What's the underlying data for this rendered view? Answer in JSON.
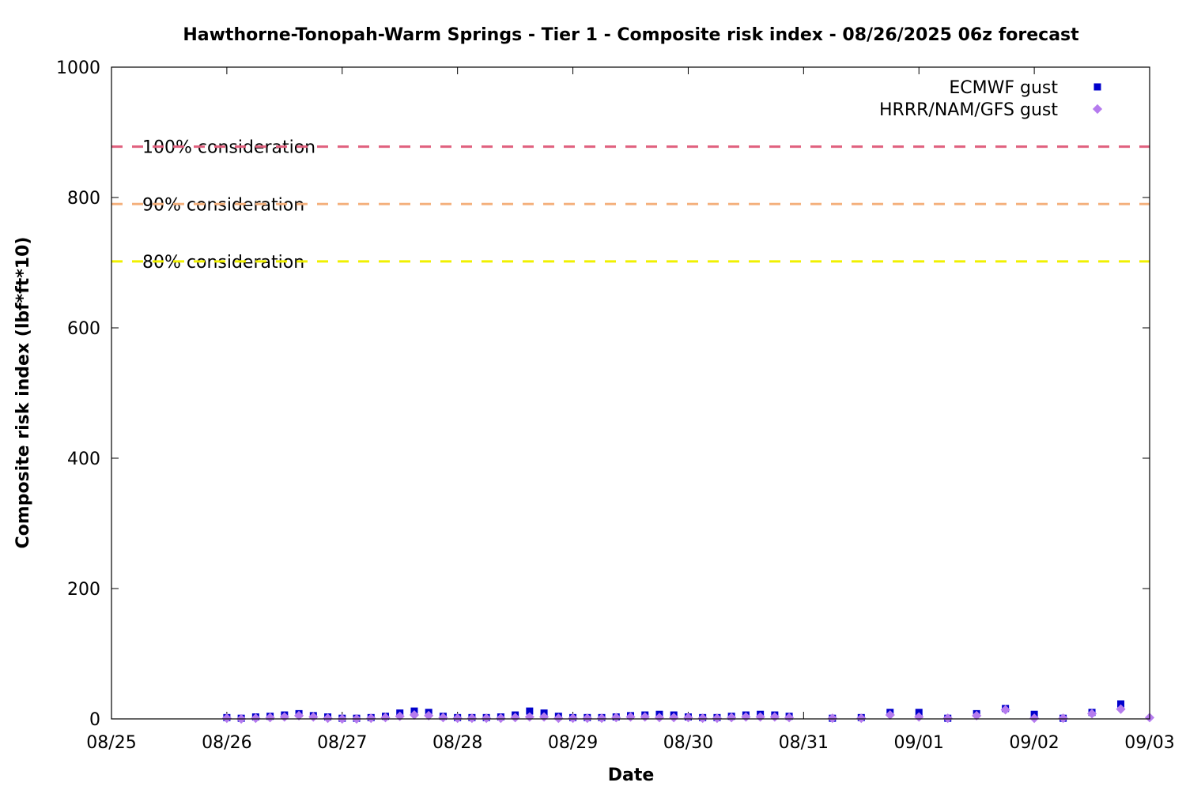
{
  "chart_data": {
    "type": "scatter",
    "title": "Hawthorne-Tonopah-Warm Springs - Tier 1 - Composite risk index - 08/26/2025 06z forecast",
    "xlabel": "Date",
    "ylabel": "Composite risk index (lbf*ft*10)",
    "xlim": [
      "2025-08-25 00:00",
      "2025-09-03 00:00"
    ],
    "ylim": [
      0,
      1000
    ],
    "x_ticks": [
      "08/25",
      "08/26",
      "08/27",
      "08/28",
      "08/29",
      "08/30",
      "08/31",
      "09/01",
      "09/02",
      "09/03"
    ],
    "y_ticks": [
      0,
      200,
      400,
      600,
      800,
      1000
    ],
    "legend_position": "top-right",
    "grid": false,
    "reference_lines": [
      {
        "label": "100% consideration",
        "y": 878,
        "color": "#e0607e"
      },
      {
        "label": "90% consideration",
        "y": 790,
        "color": "#f4b07c"
      },
      {
        "label": "80% consideration",
        "y": 702,
        "color": "#f0f000"
      }
    ],
    "series": [
      {
        "name": "ECMWF gust",
        "color": "#0000cc",
        "marker": "square",
        "points": [
          [
            "2025-08-26 00:00",
            2
          ],
          [
            "2025-08-26 03:00",
            1
          ],
          [
            "2025-08-26 06:00",
            3
          ],
          [
            "2025-08-26 09:00",
            4
          ],
          [
            "2025-08-26 12:00",
            6
          ],
          [
            "2025-08-26 15:00",
            8
          ],
          [
            "2025-08-26 18:00",
            5
          ],
          [
            "2025-08-26 21:00",
            3
          ],
          [
            "2025-08-27 00:00",
            1
          ],
          [
            "2025-08-27 03:00",
            1
          ],
          [
            "2025-08-27 06:00",
            2
          ],
          [
            "2025-08-27 09:00",
            4
          ],
          [
            "2025-08-27 12:00",
            9
          ],
          [
            "2025-08-27 15:00",
            12
          ],
          [
            "2025-08-27 18:00",
            10
          ],
          [
            "2025-08-27 21:00",
            4
          ],
          [
            "2025-08-28 00:00",
            2
          ],
          [
            "2025-08-28 03:00",
            2
          ],
          [
            "2025-08-28 06:00",
            2
          ],
          [
            "2025-08-28 09:00",
            3
          ],
          [
            "2025-08-28 12:00",
            6
          ],
          [
            "2025-08-28 15:00",
            12
          ],
          [
            "2025-08-28 18:00",
            9
          ],
          [
            "2025-08-28 21:00",
            4
          ],
          [
            "2025-08-29 00:00",
            2
          ],
          [
            "2025-08-29 03:00",
            2
          ],
          [
            "2025-08-29 06:00",
            2
          ],
          [
            "2025-08-29 09:00",
            3
          ],
          [
            "2025-08-29 12:00",
            5
          ],
          [
            "2025-08-29 15:00",
            6
          ],
          [
            "2025-08-29 18:00",
            7
          ],
          [
            "2025-08-29 21:00",
            6
          ],
          [
            "2025-08-30 00:00",
            3
          ],
          [
            "2025-08-30 03:00",
            2
          ],
          [
            "2025-08-30 06:00",
            2
          ],
          [
            "2025-08-30 09:00",
            4
          ],
          [
            "2025-08-30 12:00",
            6
          ],
          [
            "2025-08-30 15:00",
            7
          ],
          [
            "2025-08-30 18:00",
            6
          ],
          [
            "2025-08-30 21:00",
            4
          ],
          [
            "2025-08-31 06:00",
            1
          ],
          [
            "2025-08-31 12:00",
            2
          ],
          [
            "2025-08-31 18:00",
            10
          ],
          [
            "2025-09-01 00:00",
            10
          ],
          [
            "2025-09-01 06:00",
            1
          ],
          [
            "2025-09-01 12:00",
            8
          ],
          [
            "2025-09-01 18:00",
            16
          ],
          [
            "2025-09-02 00:00",
            7
          ],
          [
            "2025-09-02 06:00",
            1
          ],
          [
            "2025-09-02 12:00",
            10
          ],
          [
            "2025-09-02 18:00",
            23
          ]
        ]
      },
      {
        "name": "HRRR/NAM/GFS gust",
        "color": "#b57bee",
        "marker": "diamond",
        "points": [
          [
            "2025-08-26 00:00",
            1
          ],
          [
            "2025-08-26 03:00",
            0
          ],
          [
            "2025-08-26 06:00",
            1
          ],
          [
            "2025-08-26 09:00",
            2
          ],
          [
            "2025-08-26 12:00",
            3
          ],
          [
            "2025-08-26 15:00",
            5
          ],
          [
            "2025-08-26 18:00",
            3
          ],
          [
            "2025-08-26 21:00",
            1
          ],
          [
            "2025-08-27 00:00",
            0
          ],
          [
            "2025-08-27 03:00",
            0
          ],
          [
            "2025-08-27 06:00",
            1
          ],
          [
            "2025-08-27 09:00",
            2
          ],
          [
            "2025-08-27 12:00",
            4
          ],
          [
            "2025-08-27 15:00",
            6
          ],
          [
            "2025-08-27 18:00",
            5
          ],
          [
            "2025-08-27 21:00",
            2
          ],
          [
            "2025-08-28 00:00",
            1
          ],
          [
            "2025-08-28 03:00",
            1
          ],
          [
            "2025-08-28 06:00",
            1
          ],
          [
            "2025-08-28 09:00",
            1
          ],
          [
            "2025-08-28 12:00",
            2
          ],
          [
            "2025-08-28 15:00",
            3
          ],
          [
            "2025-08-28 18:00",
            3
          ],
          [
            "2025-08-28 21:00",
            1
          ],
          [
            "2025-08-29 00:00",
            1
          ],
          [
            "2025-08-29 03:00",
            1
          ],
          [
            "2025-08-29 06:00",
            1
          ],
          [
            "2025-08-29 09:00",
            2
          ],
          [
            "2025-08-29 12:00",
            3
          ],
          [
            "2025-08-29 15:00",
            3
          ],
          [
            "2025-08-29 18:00",
            2
          ],
          [
            "2025-08-29 21:00",
            2
          ],
          [
            "2025-08-30 00:00",
            2
          ],
          [
            "2025-08-30 03:00",
            1
          ],
          [
            "2025-08-30 06:00",
            1
          ],
          [
            "2025-08-30 09:00",
            2
          ],
          [
            "2025-08-30 12:00",
            3
          ],
          [
            "2025-08-30 15:00",
            3
          ],
          [
            "2025-08-30 18:00",
            3
          ],
          [
            "2025-08-30 21:00",
            2
          ],
          [
            "2025-08-31 06:00",
            1
          ],
          [
            "2025-08-31 12:00",
            1
          ],
          [
            "2025-08-31 18:00",
            6
          ],
          [
            "2025-09-01 00:00",
            3
          ],
          [
            "2025-09-01 06:00",
            1
          ],
          [
            "2025-09-01 12:00",
            5
          ],
          [
            "2025-09-01 18:00",
            14
          ],
          [
            "2025-09-02 00:00",
            1
          ],
          [
            "2025-09-02 06:00",
            1
          ],
          [
            "2025-09-02 12:00",
            8
          ],
          [
            "2025-09-02 18:00",
            15
          ],
          [
            "2025-09-03 00:00",
            2
          ]
        ]
      }
    ]
  }
}
